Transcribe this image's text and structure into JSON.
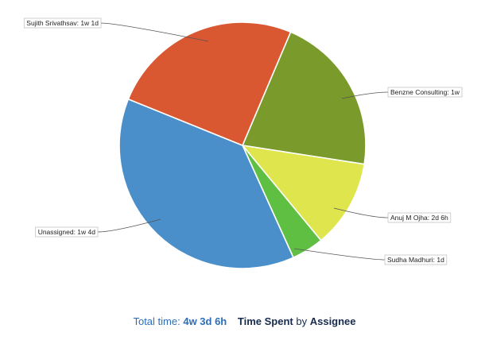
{
  "chart_data": {
    "type": "pie",
    "title": "",
    "slices": [
      {
        "label": "Benzne Consulting: 1w",
        "value": 40,
        "color": "#7a9a2b"
      },
      {
        "label": "Anuj M Ojha: 2d 6h",
        "value": 22,
        "color": "#dfe54d"
      },
      {
        "label": "Sudha Madhuri: 1d",
        "value": 8,
        "color": "#5fbf43"
      },
      {
        "label": "Unassigned: 1w 4d",
        "value": 72,
        "color": "#4a8fca"
      },
      {
        "label": "Sujith Srivathsav: 1w 1d",
        "value": 48,
        "color": "#d95731"
      }
    ]
  },
  "footer": {
    "total_label": "Total time:",
    "total_value": "4w 3d 6h",
    "statistic": "Time Spent",
    "by": "by",
    "group_by": "Assignee"
  }
}
